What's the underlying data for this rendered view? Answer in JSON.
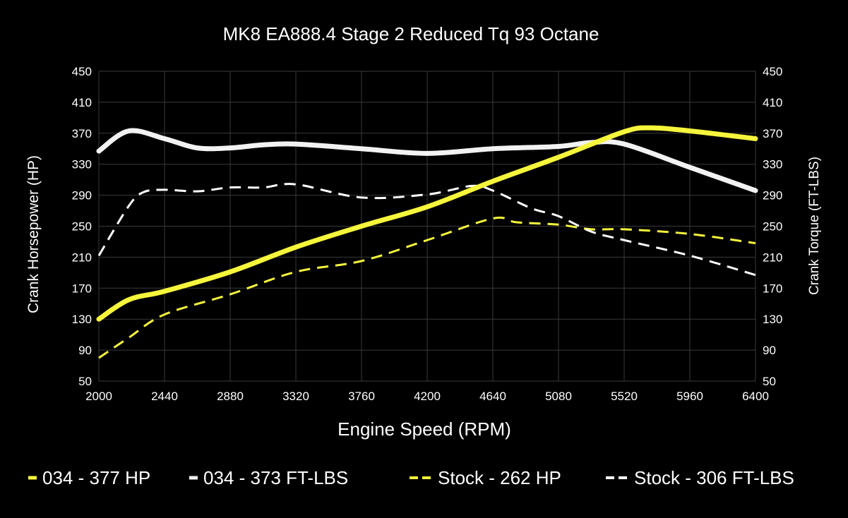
{
  "chart_data": {
    "type": "line",
    "title": "MK8 EA888.4 Stage 2 Reduced Tq 93 Octane",
    "xlabel": "Engine Speed (RPM)",
    "ylabel": "Crank Horsepower (HP)",
    "y2label": "Crank Torque (FT-LBS)",
    "xlim": [
      2000,
      6400
    ],
    "ylim": [
      50,
      450
    ],
    "y2lim": [
      50,
      450
    ],
    "xticks": [
      2000,
      2440,
      2880,
      3320,
      3760,
      4200,
      4640,
      5080,
      5520,
      5960,
      6400
    ],
    "yticks": [
      50,
      90,
      130,
      170,
      210,
      250,
      290,
      330,
      370,
      410,
      450
    ],
    "grid": true,
    "legend_position": "bottom",
    "series": [
      {
        "name": "034 - 377 HP",
        "color": "#f5f53c",
        "style": "solid",
        "axis": "left",
        "x": [
          2000,
          2200,
          2440,
          2880,
          3320,
          3760,
          4200,
          4640,
          5080,
          5520,
          5700,
          5960,
          6400
        ],
        "y": [
          130,
          155,
          166,
          191,
          223,
          250,
          275,
          308,
          339,
          372,
          377,
          373,
          363
        ]
      },
      {
        "name": "034 - 373 FT-LBS",
        "color": "#f2f2f2",
        "style": "solid",
        "axis": "right",
        "x": [
          2000,
          2200,
          2440,
          2660,
          2880,
          3100,
          3320,
          3760,
          4200,
          4640,
          5080,
          5300,
          5520,
          5960,
          6400
        ],
        "y": [
          347,
          373,
          363,
          351,
          351,
          355,
          356,
          350,
          344,
          350,
          353,
          358,
          356,
          326,
          296
        ]
      },
      {
        "name": "Stock - 262 HP",
        "color": "#f5f53c",
        "style": "dashed",
        "axis": "left",
        "x": [
          2000,
          2200,
          2440,
          2880,
          3320,
          3760,
          4200,
          4640,
          4800,
          5080,
          5300,
          5520,
          5960,
          6400
        ],
        "y": [
          80,
          106,
          136,
          162,
          191,
          205,
          232,
          260,
          255,
          252,
          246,
          246,
          240,
          228
        ]
      },
      {
        "name": "Stock - 306 FT-LBS",
        "color": "#ffffff",
        "style": "dashed",
        "axis": "right",
        "x": [
          2000,
          2200,
          2300,
          2440,
          2660,
          2880,
          3100,
          3320,
          3760,
          4200,
          4500,
          4640,
          4900,
          5080,
          5300,
          5520,
          5960,
          6400
        ],
        "y": [
          212,
          276,
          294,
          297,
          295,
          300,
          300,
          304,
          287,
          291,
          302,
          296,
          273,
          263,
          243,
          232,
          212,
          187
        ]
      }
    ]
  }
}
